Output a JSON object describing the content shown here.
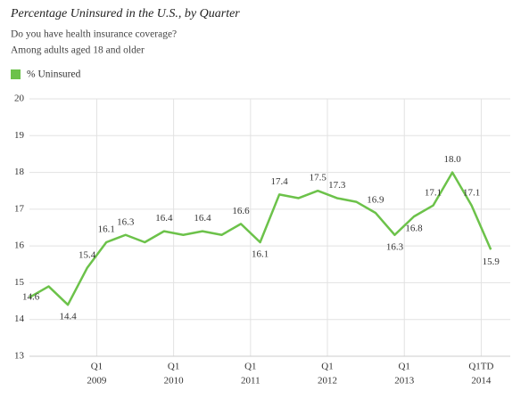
{
  "chart_data": {
    "type": "line",
    "title": "Percentage Uninsured in the U.S., by Quarter",
    "subtitle": "Do you have health insurance coverage?",
    "note": "Among adults aged 18 and older",
    "categories": [
      null,
      null,
      null,
      null,
      [
        "Q1",
        "2009"
      ],
      null,
      null,
      null,
      [
        "Q1",
        "2010"
      ],
      null,
      null,
      null,
      [
        "Q1",
        "2011"
      ],
      null,
      null,
      null,
      [
        "Q1",
        "2012"
      ],
      null,
      null,
      null,
      [
        "Q1",
        "2013"
      ],
      null,
      null,
      null,
      [
        "Q1TD",
        "2014"
      ]
    ],
    "series": [
      {
        "name": "% Uninsured",
        "color": "#6cc24a",
        "values": [
          14.6,
          14.9,
          14.4,
          15.4,
          16.1,
          16.3,
          16.1,
          16.4,
          16.3,
          16.4,
          16.3,
          16.6,
          16.1,
          17.4,
          17.3,
          17.5,
          17.3,
          17.2,
          16.9,
          16.3,
          16.8,
          17.1,
          18.0,
          17.1,
          15.9
        ],
        "value_labels": [
          "14.6",
          null,
          "14.4",
          "15.4",
          "16.1",
          "16.3",
          null,
          "16.4",
          null,
          "16.4",
          null,
          "16.6",
          "16.1",
          "17.4",
          null,
          "17.5",
          "17.3",
          null,
          "16.9",
          "16.3",
          "16.8",
          "17.1",
          "18.0",
          "17.1",
          "15.9"
        ]
      }
    ],
    "ylim": [
      13,
      20
    ],
    "yticks": [
      13,
      14,
      15,
      16,
      17,
      18,
      19,
      20
    ],
    "grid": true
  }
}
